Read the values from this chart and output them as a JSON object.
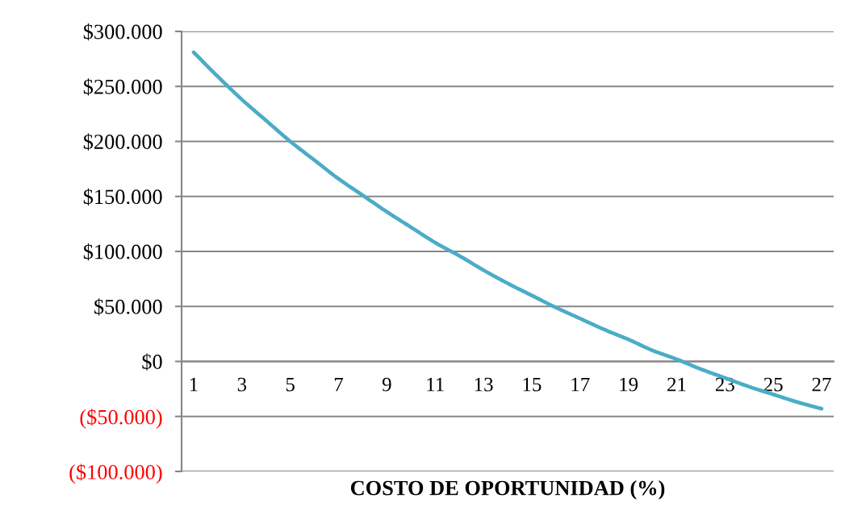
{
  "chart_data": {
    "type": "line",
    "xlabel": "COSTO DE OPORTUNIDAD (%)",
    "categories": [
      "1",
      null,
      "3",
      null,
      "5",
      null,
      "7",
      null,
      "9",
      null,
      "11",
      null,
      "13",
      null,
      "15",
      null,
      "17",
      null,
      "19",
      null,
      "21",
      null,
      "23",
      null,
      "25",
      null,
      "27"
    ],
    "series": [
      {
        "color": "#4bacc6",
        "values": [
          281000,
          259000,
          238000,
          219000,
          200000,
          183000,
          166000,
          151000,
          136000,
          122000,
          108000,
          96000,
          83000,
          71000,
          60000,
          49000,
          39000,
          29000,
          20000,
          10000,
          2000,
          -7000,
          -15000,
          -23000,
          -30000,
          -37000,
          -43000
        ]
      }
    ],
    "ylim": [
      -100000,
      300000
    ],
    "yticks": [
      {
        "value": -100000,
        "label": "($100.000)"
      },
      {
        "value": -50000,
        "label": "($50.000)"
      },
      {
        "value": 0,
        "label": "$0"
      },
      {
        "value": 50000,
        "label": "$50.000"
      },
      {
        "value": 100000,
        "label": "$100.000"
      },
      {
        "value": 150000,
        "label": "$150.000"
      },
      {
        "value": 200000,
        "label": "$200.000"
      },
      {
        "value": 250000,
        "label": "$250.000"
      },
      {
        "value": 300000,
        "label": "$300.000"
      }
    ],
    "grid": "y",
    "marker": "none",
    "line_style": "solid"
  }
}
